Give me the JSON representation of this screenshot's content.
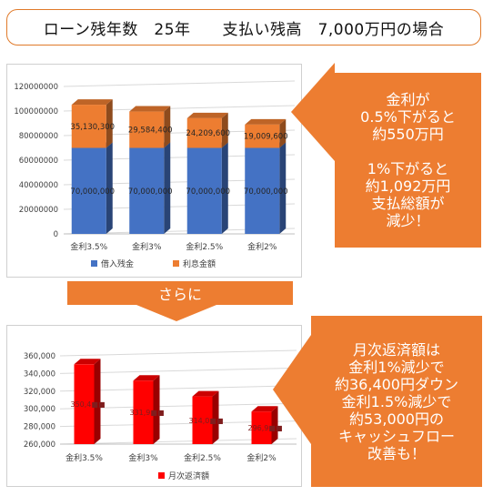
{
  "title": "ローン残年数　25年　　支払い残高　7,000万円の場合",
  "colors": {
    "accent": "#ed7d31",
    "principal": "#4472c4",
    "interest": "#ed7d31",
    "monthly": "#ff0000"
  },
  "chart_data": [
    {
      "type": "bar",
      "stacked": true,
      "categories": [
        "金利3.5%",
        "金利3%",
        "金利2.5%",
        "金利2%"
      ],
      "series": [
        {
          "name": "借入残金",
          "values": [
            70000000,
            70000000,
            70000000,
            70000000
          ]
        },
        {
          "name": "利息金額",
          "values": [
            35130300,
            29584400,
            24209600,
            19009600
          ]
        }
      ],
      "data_labels": [
        [
          "70,000,000",
          "70,000,000",
          "70,000,000",
          "70,000,000"
        ],
        [
          "35,130,300",
          "29,584,400",
          "24,209,600",
          "19,009,600"
        ]
      ],
      "ylim": [
        0,
        120000000
      ],
      "yticks": [
        "0",
        "20000000",
        "40000000",
        "60000000",
        "80000000",
        "100000000",
        "120000000"
      ],
      "legend_position": "bottom",
      "grid": true
    },
    {
      "type": "bar",
      "categories": [
        "金利3.5%",
        "金利3%",
        "金利2.5%",
        "金利2%"
      ],
      "series": [
        {
          "name": "月次返済額",
          "values": [
            350400,
            331900,
            314000,
            296900
          ]
        }
      ],
      "data_labels": [
        "350,4■■",
        "331,9■■",
        "314,0■■",
        "296,9■■"
      ],
      "ylim": [
        260000,
        360000
      ],
      "yticks": [
        "260,000",
        "280,000",
        "300,000",
        "320,000",
        "340,000",
        "360,000"
      ],
      "legend_position": "bottom",
      "grid": true
    }
  ],
  "callout1": {
    "lines": [
      "金利が",
      "0.5%下がると",
      "約550万円",
      "",
      "1%下がると",
      "約1,092万円",
      "支払総額が",
      "減少！"
    ]
  },
  "sarani": "さらに",
  "callout2": {
    "lines": [
      "月次返済額は",
      "金利1%減少で",
      "約36,400円ダウン",
      "金利1.5%減少で",
      "約53,000円の",
      "キャッシュフロー",
      "改善も！"
    ]
  }
}
